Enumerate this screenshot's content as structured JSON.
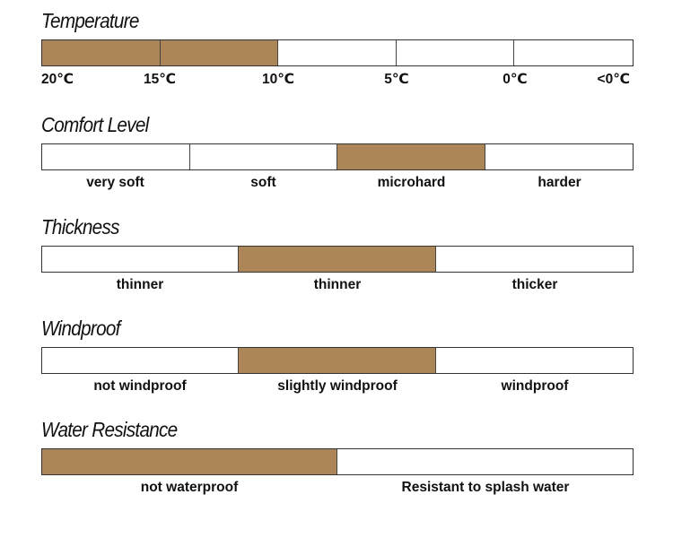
{
  "colors": {
    "filled": "#ad8658",
    "empty": "#ffffff",
    "border": "#333333"
  },
  "scales": [
    {
      "key": "temperature",
      "title": "Temperature",
      "labelMode": "ticks",
      "segments": [
        true,
        true,
        false,
        false,
        false
      ],
      "labels": [
        "20℃",
        "15℃",
        "10℃",
        "5℃",
        "0℃",
        "<0℃"
      ]
    },
    {
      "key": "comfort",
      "title": "Comfort Level",
      "labelMode": "centered",
      "segments": [
        false,
        false,
        true,
        false
      ],
      "labels": [
        "very soft",
        "soft",
        "microhard",
        "harder"
      ]
    },
    {
      "key": "thickness",
      "title": "Thickness",
      "labelMode": "centered",
      "segments": [
        false,
        true,
        false
      ],
      "labels": [
        "thinner",
        "thinner",
        "thicker"
      ]
    },
    {
      "key": "windproof",
      "title": "Windproof",
      "labelMode": "centered",
      "segments": [
        false,
        true,
        false
      ],
      "labels": [
        "not windproof",
        "slightly windproof",
        "windproof"
      ]
    },
    {
      "key": "water",
      "title": "Water Resistance",
      "labelMode": "centered",
      "segments": [
        true,
        false
      ],
      "labels": [
        "not waterproof",
        "Resistant to splash water"
      ]
    }
  ]
}
